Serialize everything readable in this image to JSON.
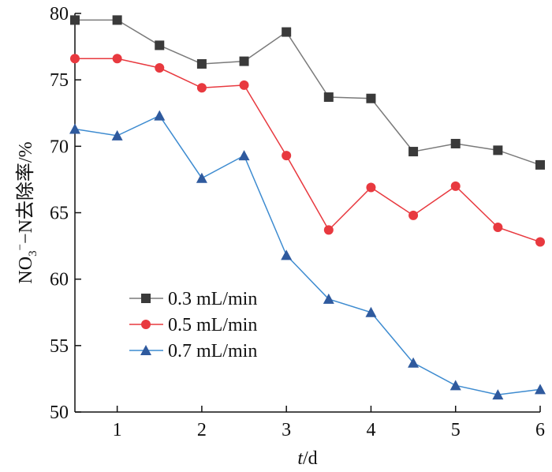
{
  "chart_data": {
    "type": "line",
    "xlabel_italic": "t",
    "xlabel_rest": "/d",
    "ylabel": {
      "prefix": "NO",
      "sub": "3",
      "sup": "−",
      "suffix": "−N去除率/%"
    },
    "xlim": [
      0.5,
      6
    ],
    "ylim": [
      50,
      80
    ],
    "xticks": [
      1,
      2,
      3,
      4,
      5,
      6
    ],
    "yticks": [
      50,
      55,
      60,
      65,
      70,
      75,
      80
    ],
    "x": [
      0.5,
      1,
      1.5,
      2,
      2.5,
      3,
      3.5,
      4,
      4.5,
      5,
      5.5,
      6
    ],
    "legend_position": "left-center",
    "series": [
      {
        "name": "0.3 mL/min",
        "color": "#7a7a7a",
        "marker": "square",
        "marker_color": "#3a3a3a",
        "values": [
          79.5,
          79.5,
          77.6,
          76.2,
          76.4,
          78.6,
          73.7,
          73.6,
          69.6,
          70.2,
          69.7,
          68.6
        ]
      },
      {
        "name": "0.5 mL/min",
        "color": "#e8393f",
        "marker": "circle",
        "marker_color": "#e8393f",
        "values": [
          76.6,
          76.6,
          75.9,
          74.4,
          74.6,
          69.3,
          63.7,
          66.9,
          64.8,
          67.0,
          63.9,
          62.8
        ]
      },
      {
        "name": "0.7 mL/min",
        "color": "#3d8bd0",
        "marker": "triangle",
        "marker_color": "#2f5a9e",
        "values": [
          71.3,
          70.8,
          72.3,
          67.6,
          69.3,
          61.8,
          58.5,
          57.5,
          53.7,
          52.0,
          51.3,
          51.7
        ]
      }
    ]
  }
}
